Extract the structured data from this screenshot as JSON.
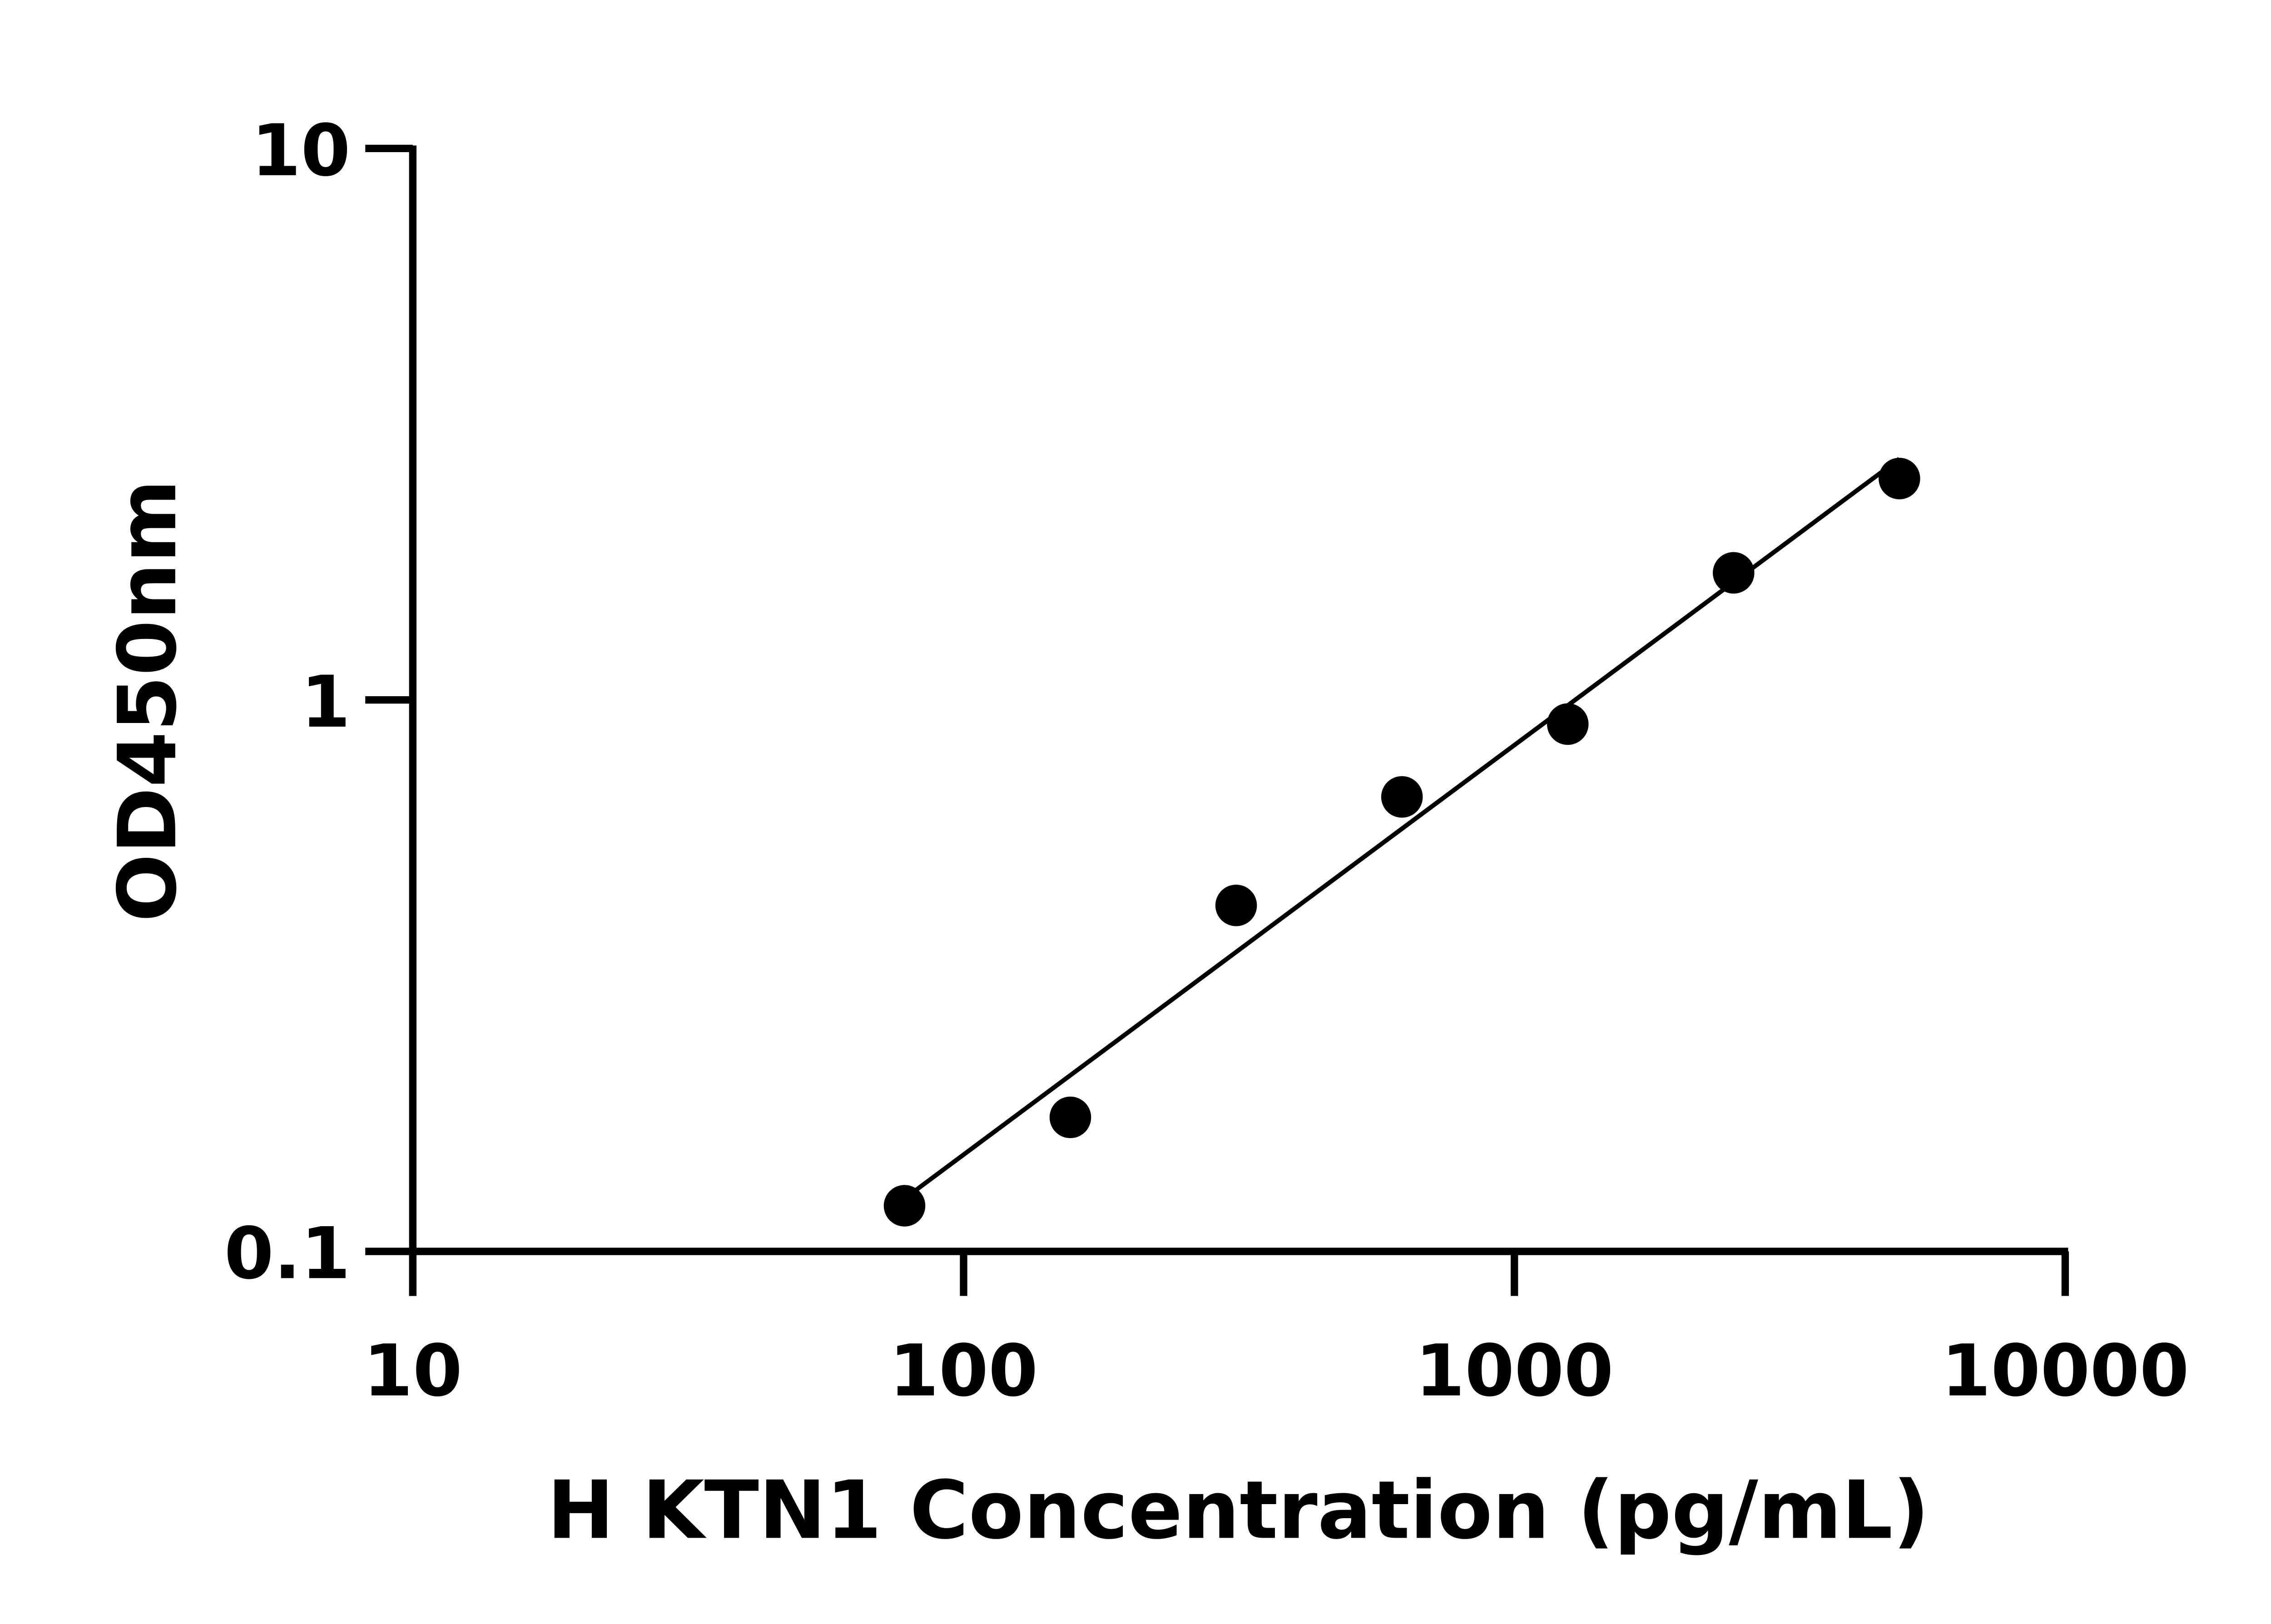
{
  "chart_data": {
    "type": "scatter",
    "xlabel": "H KTN1 Concentration (pg/mL)",
    "ylabel": "OD450nm",
    "xscale": "log",
    "yscale": "log",
    "xlim": [
      10,
      10000
    ],
    "ylim": [
      0.1,
      10
    ],
    "xticks": [
      "10",
      "100",
      "1000",
      "10000"
    ],
    "yticks": [
      "0.1",
      "1",
      "10"
    ],
    "grid": false,
    "fit_line": "linear fit in log-log space",
    "x": [
      78.125,
      156.25,
      312.5,
      625,
      1250,
      2500,
      5000
    ],
    "y": [
      0.121,
      0.175,
      0.424,
      0.667,
      0.904,
      1.7,
      2.52
    ],
    "colors": {
      "points": "#000000",
      "line": "#000000",
      "axes": "#000000"
    }
  }
}
